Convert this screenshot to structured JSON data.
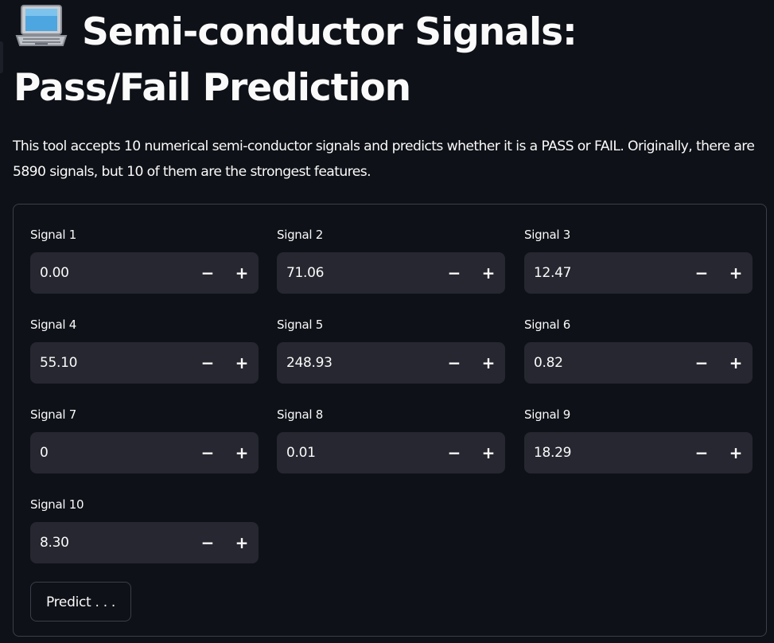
{
  "page": {
    "title": "Semi-conductor Signals: Pass/Fail Prediction",
    "title_icon": "laptop-icon",
    "description": "This tool accepts 10 numerical semi-conductor signals and predicts whether it is a PASS or FAIL. Originally, there are 5890 signals, but 10 of them are the strongest features."
  },
  "form": {
    "fields": [
      {
        "label": "Signal 1",
        "value": "0.00"
      },
      {
        "label": "Signal 2",
        "value": "71.06"
      },
      {
        "label": "Signal 3",
        "value": "12.47"
      },
      {
        "label": "Signal 4",
        "value": "55.10"
      },
      {
        "label": "Signal 5",
        "value": "248.93"
      },
      {
        "label": "Signal 6",
        "value": "0.82"
      },
      {
        "label": "Signal 7",
        "value": "0"
      },
      {
        "label": "Signal 8",
        "value": "0.01"
      },
      {
        "label": "Signal 9",
        "value": "18.29"
      },
      {
        "label": "Signal 10",
        "value": "8.30"
      }
    ],
    "decrement_symbol": "−",
    "increment_symbol": "+",
    "submit_label": "Predict . . ."
  },
  "colors": {
    "background": "#0e1117",
    "input_background": "#262730",
    "border": "#3b3f4a",
    "text": "#fafafa"
  }
}
